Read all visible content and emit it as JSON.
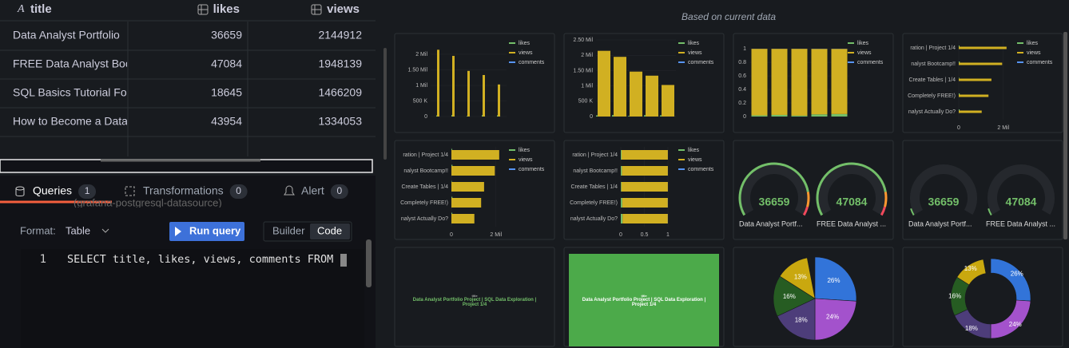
{
  "table": {
    "columns": [
      "title",
      "likes",
      "views"
    ],
    "rows": [
      [
        "Data Analyst Portfolio",
        36659,
        2144912
      ],
      [
        "FREE Data Analyst Bootcamp!!",
        47084,
        1948139
      ],
      [
        "SQL Basics Tutorial For",
        18645,
        1466209
      ],
      [
        "How to Become a Data",
        43954,
        1334053
      ]
    ]
  },
  "tabs": [
    {
      "label": "Queries",
      "count": 1
    },
    {
      "label": "Transformations",
      "count": 0
    },
    {
      "label": "Alert",
      "count": 0
    }
  ],
  "datasource": "(grafana-postgresql-datasource)",
  "editor": {
    "format_label": "Format:",
    "format": "Table",
    "run": "Run query",
    "modes": [
      "Builder",
      "Code"
    ],
    "line": 1,
    "code": "SELECT title, likes, views, comments  FROM"
  },
  "suggestions": {
    "title": "Based on current data",
    "series": [
      {
        "name": "likes",
        "color": "#73bf69",
        "values": [
          36659,
          47084,
          18645,
          43954,
          40000
        ]
      },
      {
        "name": "views",
        "color": "#d1b022",
        "values": [
          2144912,
          1948139,
          1466209,
          1334053,
          1030000
        ]
      },
      {
        "name": "comments",
        "color": "#5794f2",
        "values": [
          1500,
          2500,
          1000,
          2000,
          1800
        ]
      }
    ],
    "panels": [
      {
        "type": "bar",
        "ylim": [
          0,
          2300000
        ],
        "yticks": [
          0,
          {
            "value": 500000,
            "label": "500 K"
          },
          {
            "value": 1000000,
            "label": "1 Mil"
          },
          {
            "value": 1500000,
            "label": "1.50 Mil"
          },
          {
            "value": 2000000,
            "label": "2 Mil"
          }
        ]
      },
      {
        "type": "bar",
        "ylim": [
          0,
          2600000
        ],
        "yticks": [
          0,
          {
            "value": 500000,
            "label": "500 K"
          },
          {
            "value": 1000000,
            "label": "1 Mil"
          },
          {
            "value": 1500000,
            "label": "1.50 Mil"
          },
          {
            "value": 2000000,
            "label": "2 Mil"
          },
          {
            "value": 2500000,
            "label": "2.50 Mil"
          }
        ]
      },
      {
        "type": "bar_percent",
        "ylim": [
          0,
          1.06
        ],
        "yticks": [
          0,
          0.2,
          0.4,
          0.6,
          0.8,
          1
        ],
        "series": [
          {
            "name": "likes",
            "color": "#73bf69",
            "values": [
              0.017,
              0.024,
              0.013,
              0.032,
              0.037
            ]
          },
          {
            "name": "views",
            "color": "#d1b022",
            "values": [
              0.982,
              0.975,
              0.986,
              0.966,
              0.961
            ]
          },
          {
            "name": "comments",
            "color": "#5794f2",
            "values": [
              0.001,
              0.001,
              0.001,
              0.002,
              0.002
            ]
          }
        ]
      },
      {
        "type": "hbar",
        "categories": [
          "ration | Project 1/4",
          "nalyst Bootcamp!!",
          "Create Tables | 1/4",
          "Completely FREE!)",
          "nalyst Actually Do?"
        ],
        "xlim": [
          0,
          3800000
        ],
        "xticks": [
          0,
          {
            "value": 2000000,
            "label": "2 Mil"
          }
        ]
      },
      {
        "type": "hbar",
        "categories": [
          "ration | Project 1/4",
          "nalyst Bootcamp!!",
          "Create Tables | 1/4",
          "Completely FREE!)",
          "nalyst Actually Do?"
        ],
        "xlim": [
          0,
          3800000
        ],
        "xticks": [
          0,
          {
            "value": 2000000,
            "label": "2 Mil"
          }
        ]
      },
      {
        "type": "hbar_percent",
        "categories": [
          "ration | Project 1/4",
          "nalyst Bootcamp!!",
          "Create Tables | 1/4",
          "Completely FREE!)",
          "nalyst Actually Do?"
        ],
        "xlim": [
          0,
          1
        ],
        "xticks": [
          0,
          0.5,
          1
        ],
        "series": [
          {
            "name": "likes",
            "color": "#73bf69",
            "values": [
              0.017,
              0.024,
              0.013,
              0.032,
              0.037
            ]
          },
          {
            "name": "views",
            "color": "#d1b022",
            "values": [
              0.982,
              0.975,
              0.986,
              0.966,
              0.961
            ]
          },
          {
            "name": "comments",
            "color": "#5794f2",
            "values": [
              0.001,
              0.001,
              0.001,
              0.002,
              0.002
            ]
          }
        ]
      },
      {
        "type": "gauge",
        "gauges": [
          {
            "value": 36659,
            "label": "Data Analyst Portf..."
          },
          {
            "value": 47084,
            "label": "FREE Data Analyst ..."
          }
        ]
      },
      {
        "type": "gauge_dark",
        "gauges": [
          {
            "value": 36659,
            "label": "Data Analyst Portf..."
          },
          {
            "value": 47084,
            "label": "FREE Data Analyst ..."
          }
        ]
      },
      {
        "type": "text",
        "field": "title",
        "text": "Data Analyst Portfolio Project | SQL Data Exploration | Project 1/4"
      },
      {
        "type": "text_fill",
        "field": "title",
        "text": "Data Analyst Portfolio Project | SQL Data Exploration | Project 1/4"
      },
      {
        "type": "pie",
        "values": [
          26,
          24,
          18,
          16,
          13
        ],
        "value_labels": [
          "26%",
          "24%",
          "18%",
          "16%",
          "13%"
        ],
        "colors": [
          "#3274d9",
          "#a352cc",
          "#4d3d7a",
          "#265c22",
          "#c9a80f"
        ]
      },
      {
        "type": "donut",
        "values": [
          26,
          24,
          18,
          16,
          13
        ],
        "value_labels": [
          "26%",
          "24%",
          "18%",
          "16%",
          "13%"
        ],
        "colors": [
          "#3274d9",
          "#a352cc",
          "#4d3d7a",
          "#265c22",
          "#c9a80f"
        ]
      }
    ]
  }
}
